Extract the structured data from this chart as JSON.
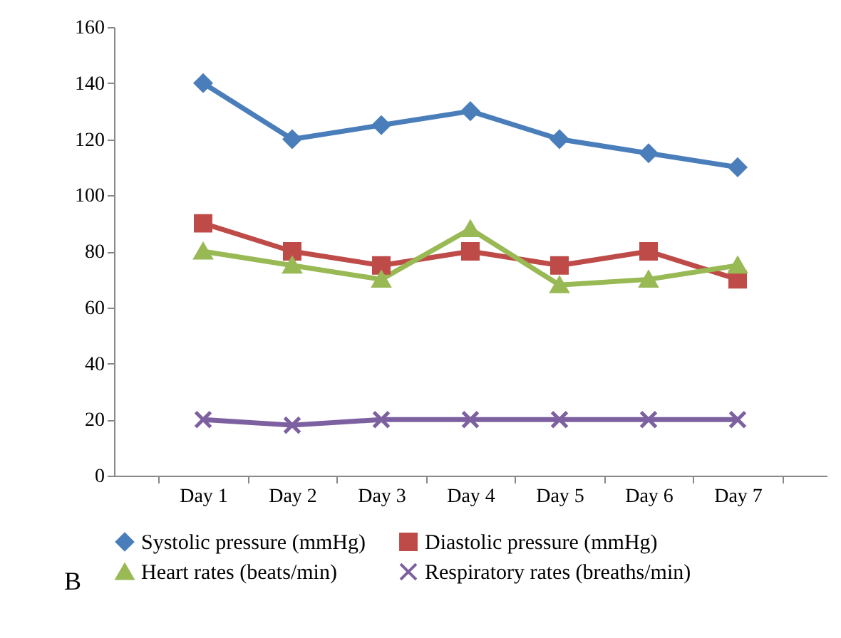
{
  "chart_data": {
    "type": "line",
    "categories": [
      "Day 1",
      "Day 2",
      "Day 3",
      "Day 4",
      "Day 5",
      "Day 6",
      "Day 7"
    ],
    "series": [
      {
        "name": "Systolic pressure (mmHg)",
        "color": "#4a7ebb",
        "marker": "diamond",
        "values": [
          140,
          120,
          125,
          130,
          120,
          115,
          110
        ]
      },
      {
        "name": "Diastolic pressure (mmHg)",
        "color": "#be4b48",
        "marker": "square",
        "values": [
          90,
          80,
          75,
          80,
          75,
          80,
          70
        ]
      },
      {
        "name": "Heart rates (beats/min)",
        "color": "#98b954",
        "marker": "triangle",
        "values": [
          80,
          75,
          70,
          88,
          68,
          70,
          75
        ]
      },
      {
        "name": "Respiratory rates (breaths/min)",
        "color": "#7d60a0",
        "marker": "cross",
        "values": [
          20,
          18,
          20,
          20,
          20,
          20,
          20
        ]
      }
    ],
    "ylim": [
      0,
      160
    ],
    "yticks": [
      0,
      20,
      40,
      60,
      80,
      100,
      120,
      140,
      160
    ],
    "grid": false,
    "legend": "bottom",
    "line_style": "solid",
    "annotations": [
      "B"
    ]
  }
}
